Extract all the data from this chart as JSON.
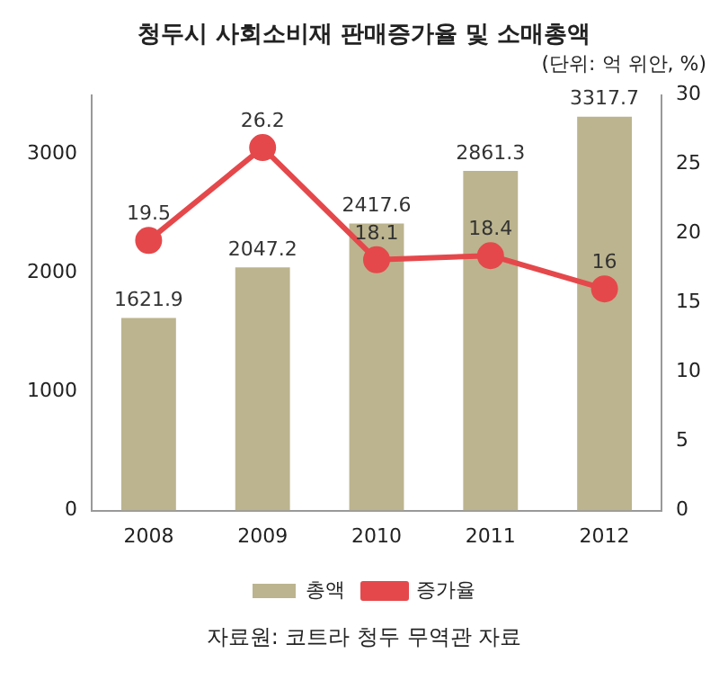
{
  "chart_data": {
    "type": "bar",
    "title": "청두시 사회소비재 판매증가율 및 소매총액",
    "subtitle": "(단위: 억 위안, %)",
    "categories": [
      "2008",
      "2009",
      "2010",
      "2011",
      "2012"
    ],
    "series": [
      {
        "name": "총액",
        "color": "#bcb48e",
        "values": [
          1621.9,
          2047.2,
          2417.6,
          2861.3,
          3317.7
        ]
      },
      {
        "name": "증가율",
        "type": "line",
        "axis": "y2",
        "color": "#e5484b",
        "values": [
          19.5,
          26.2,
          18.1,
          18.4,
          16
        ]
      }
    ],
    "ylim": [
      0,
      3500
    ],
    "yticks": [
      0,
      1000,
      2000,
      3000
    ],
    "y2lim": [
      0,
      30
    ],
    "y2ticks": [
      0,
      5,
      10,
      15,
      20,
      25,
      30
    ],
    "data_labels": true,
    "grid": false,
    "legend": "bottom",
    "marker": "circle",
    "line_style": "solid",
    "annotations": [
      "자료원: 코트라 청두 무역관 자료"
    ]
  }
}
